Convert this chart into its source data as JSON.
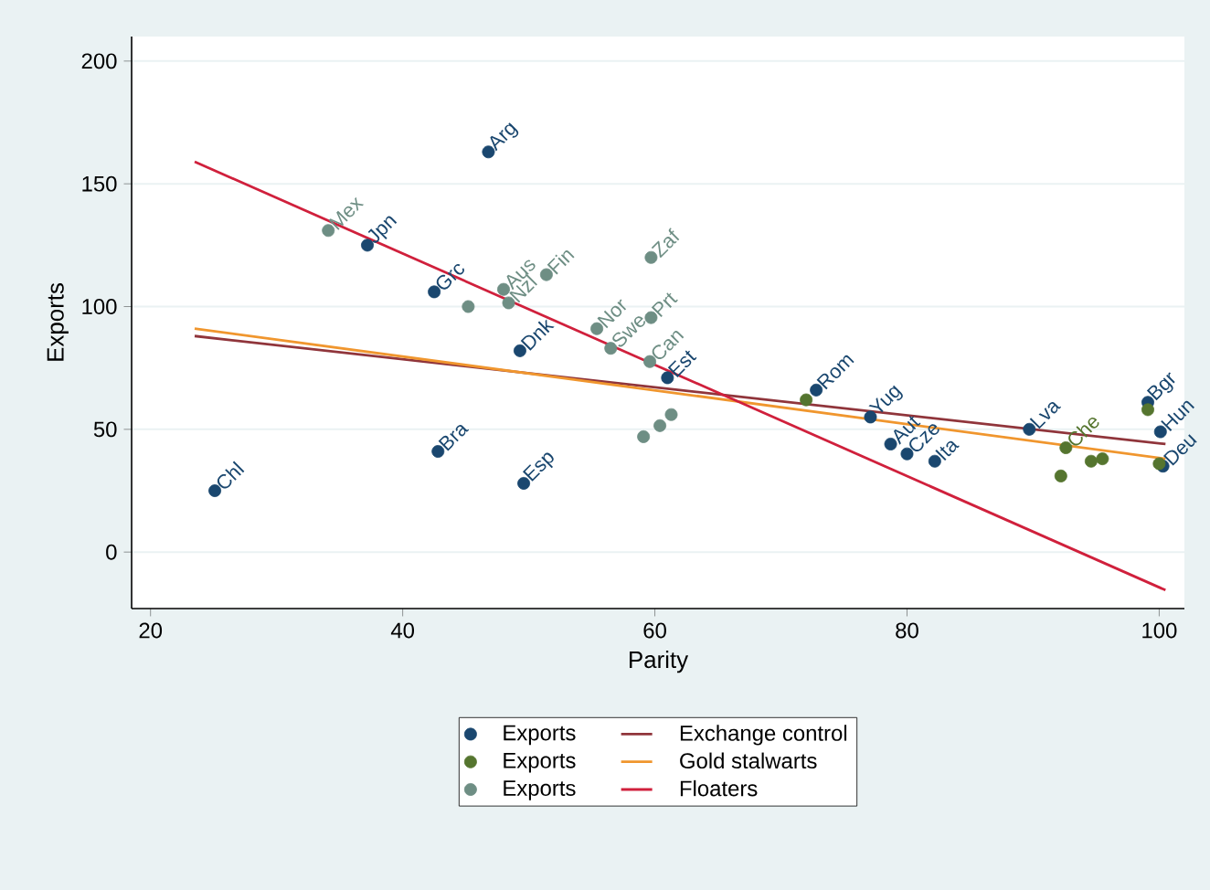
{
  "chart_data": {
    "type": "scatter",
    "xlabel": "Parity",
    "ylabel": "Exports",
    "xlim": [
      18.5,
      102
    ],
    "ylim": [
      -23,
      210
    ],
    "xticks": [
      20,
      40,
      60,
      80,
      100
    ],
    "yticks": [
      0,
      50,
      100,
      150,
      200
    ],
    "grid": "y",
    "legend": "bottom",
    "series": [
      {
        "name": "Exports",
        "marker": "circle",
        "color": "#1a476f",
        "x": [
          46.8,
          37.2,
          42.5,
          49.3,
          42.8,
          49.6,
          25.1,
          61.0,
          72.8,
          77.1,
          78.7,
          80.0,
          82.2,
          89.7,
          99.1,
          100.1,
          100.3
        ],
        "values": [
          163,
          125,
          106,
          82,
          41,
          28,
          25,
          71,
          66,
          55,
          44,
          40,
          37,
          50,
          61,
          49,
          35
        ],
        "value_labels": [
          "Arg",
          "Jpn",
          "Grc",
          "Dnk",
          "Bra",
          "Esp",
          "Chl",
          "Est",
          "Rom",
          "Yug",
          "Aut",
          "Cze",
          "Ita",
          "Lva",
          "Bgr",
          "Hun",
          "Deu"
        ]
      },
      {
        "name": "Exchange control",
        "type": "line",
        "marker": "none",
        "color": "#90353b",
        "x": [
          23.5,
          100.5
        ],
        "values": [
          88,
          44
        ]
      },
      {
        "name": "Exports",
        "marker": "circle",
        "color": "#55752f",
        "x": [
          72.0,
          92.6,
          92.2,
          94.6,
          95.5,
          99.1,
          100.0
        ],
        "values": [
          62,
          42.5,
          31,
          37,
          38,
          58,
          36
        ],
        "value_labels": [
          null,
          "Che",
          null,
          null,
          null,
          null,
          null
        ]
      },
      {
        "name": "Gold stalwarts",
        "type": "line",
        "marker": "none",
        "color": "#f0962e",
        "x": [
          23.5,
          100.5
        ],
        "values": [
          91,
          38
        ]
      },
      {
        "name": "Exports",
        "marker": "circle",
        "color": "#6e8e84",
        "x": [
          34.1,
          45.2,
          48.0,
          48.4,
          51.4,
          59.7,
          55.4,
          59.7,
          56.5,
          59.6,
          59.1,
          60.4,
          61.3
        ],
        "values": [
          131,
          100,
          107,
          101.5,
          113,
          120,
          91,
          95.5,
          83,
          77.6,
          47,
          51.5,
          56
        ],
        "value_labels": [
          "Mex",
          null,
          "Aus",
          "Nzl",
          "Fin",
          "Zaf",
          "Nor",
          "Prt",
          "Swe",
          "Can",
          null,
          null,
          null
        ]
      },
      {
        "name": "Floaters",
        "type": "line",
        "marker": "none",
        "color": "#d0203c",
        "x": [
          23.5,
          100.5
        ],
        "values": [
          159,
          -15.5
        ]
      }
    ]
  }
}
